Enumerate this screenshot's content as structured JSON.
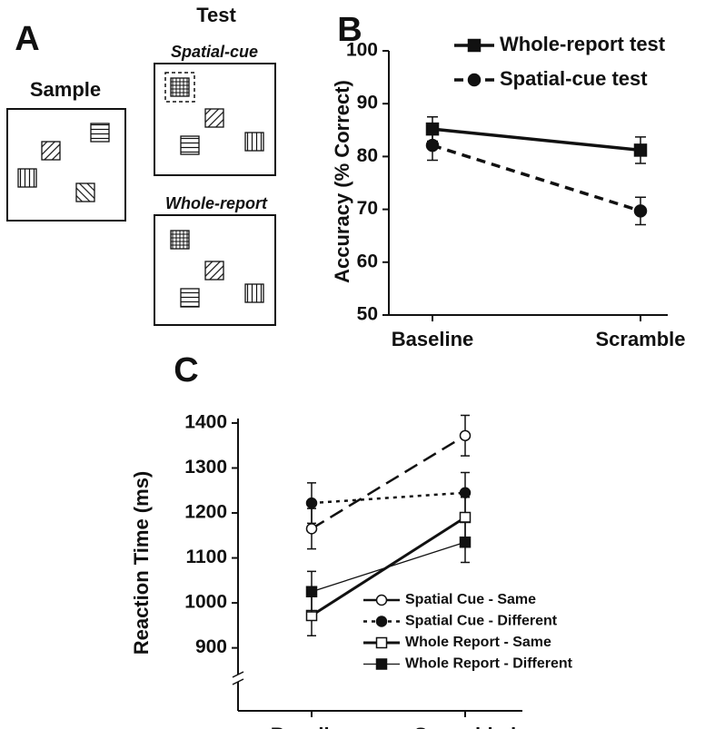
{
  "panel_a": {
    "label": "A",
    "sample": "Sample",
    "test": "Test",
    "spatial_cue": "Spatial-cue",
    "whole_report": "Whole-report"
  },
  "chart_data": [
    {
      "type": "line",
      "panel_label": "B",
      "y_label": "Accuracy (% Correct)",
      "categories": [
        "Baseline",
        "Scramble"
      ],
      "ylim": [
        50,
        100
      ],
      "yticks": [
        50,
        60,
        70,
        80,
        90,
        100
      ],
      "legend": "top-right",
      "series": [
        {
          "name": "Whole-report test",
          "color": "#111111",
          "values": [
            85.2,
            81.2
          ],
          "errors": [
            2.3,
            2.5
          ],
          "marker": "square",
          "fill": "filled",
          "dash": "solid",
          "line_width": 3.5
        },
        {
          "name": "Spatial-cue test",
          "color": "#111111",
          "values": [
            82.1,
            69.7
          ],
          "errors": [
            2.8,
            2.6
          ],
          "marker": "circle",
          "fill": "filled",
          "dash": "dashed",
          "line_width": 3.5
        }
      ]
    },
    {
      "type": "line",
      "panel_label": "C",
      "y_label": "Reaction Time (ms)",
      "categories": [
        "Baseline",
        "Scrambled"
      ],
      "ylim": [
        760,
        1410
      ],
      "yticks": [
        900,
        1000,
        1100,
        1200,
        1300,
        1400
      ],
      "axis_break": true,
      "legend": "bottom-right",
      "series": [
        {
          "name": "Spatial Cue - Same",
          "color": "#111111",
          "values": [
            1165,
            1372
          ],
          "errors": [
            45,
            45
          ],
          "marker": "circle",
          "fill": "open",
          "dash": "long-dash",
          "line_width": 2.5
        },
        {
          "name": "Spatial Cue - Different",
          "color": "#111111",
          "values": [
            1222,
            1245
          ],
          "errors": [
            45,
            45
          ],
          "marker": "circle",
          "fill": "filled",
          "dash": "dotted",
          "line_width": 2.5
        },
        {
          "name": "Whole Report - Same",
          "color": "#111111",
          "values": [
            972,
            1190
          ],
          "errors": [
            45,
            45
          ],
          "marker": "square",
          "fill": "open",
          "dash": "solid",
          "line_width": 3
        },
        {
          "name": "Whole Report - Different",
          "color": "#111111",
          "values": [
            1025,
            1135
          ],
          "errors": [
            45,
            45
          ],
          "marker": "square",
          "fill": "filled",
          "dash": "solid",
          "line_width": 1.3
        }
      ]
    }
  ]
}
